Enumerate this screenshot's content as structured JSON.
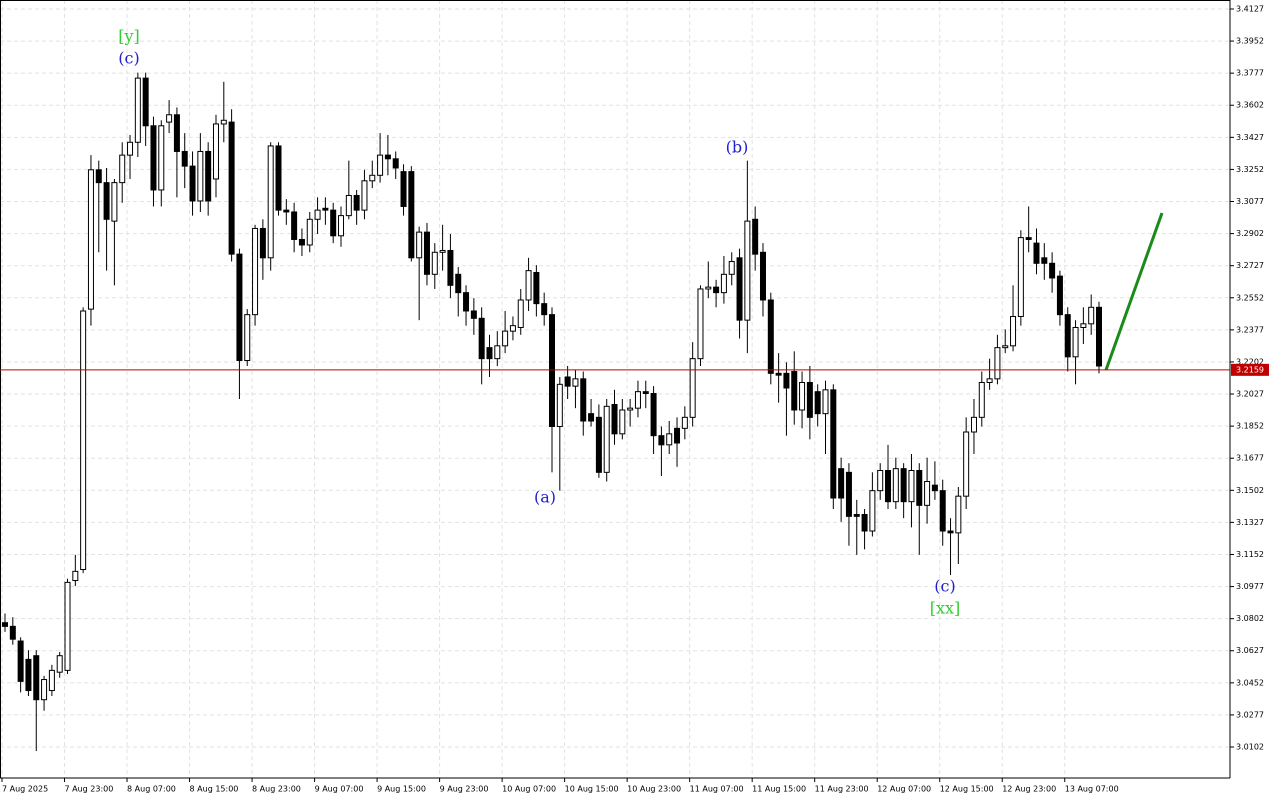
{
  "chart_data": {
    "type": "candlestick",
    "categories": [
      "7 Aug 2025",
      null,
      null,
      null,
      null,
      null,
      null,
      null,
      "7 Aug 23:00",
      null,
      null,
      null,
      null,
      null,
      null,
      null,
      "8 Aug 07:00",
      null,
      null,
      null,
      null,
      null,
      null,
      null,
      "8 Aug 15:00",
      null,
      null,
      null,
      null,
      null,
      null,
      null,
      "8 Aug 23:00",
      null,
      null,
      null,
      null,
      null,
      null,
      null,
      "9 Aug 07:00",
      null,
      null,
      null,
      null,
      null,
      null,
      null,
      "9 Aug 15:00",
      null,
      null,
      null,
      null,
      null,
      null,
      null,
      "9 Aug 23:00",
      null,
      null,
      null,
      null,
      null,
      null,
      null,
      "10 Aug 07:00",
      null,
      null,
      null,
      null,
      null,
      null,
      null,
      "10 Aug 15:00",
      null,
      null,
      null,
      null,
      null,
      null,
      null,
      "10 Aug 23:00",
      null,
      null,
      null,
      null,
      null,
      null,
      null,
      "11 Aug 07:00",
      null,
      null,
      null,
      null,
      null,
      null,
      null,
      "11 Aug 15:00",
      null,
      null,
      null,
      null,
      null,
      null,
      null,
      "11 Aug 23:00",
      null,
      null,
      null,
      null,
      null,
      null,
      null,
      "12 Aug 07:00",
      null,
      null,
      null,
      null,
      null,
      null,
      null,
      "12 Aug 15:00",
      null,
      null,
      null,
      null,
      null,
      null,
      null,
      "12 Aug 23:00",
      null,
      null,
      null,
      null,
      null,
      null,
      null,
      "13 Aug 07:00",
      null,
      null,
      null,
      null
    ],
    "ohlc": [
      [
        3.078,
        3.083,
        3.073,
        3.076
      ],
      [
        3.076,
        3.081,
        3.066,
        3.069
      ],
      [
        3.068,
        3.07,
        3.04,
        3.046
      ],
      [
        3.058,
        3.063,
        3.038,
        3.041
      ],
      [
        3.06,
        3.063,
        3.008,
        3.036
      ],
      [
        3.036,
        3.049,
        3.03,
        3.047
      ],
      [
        3.041,
        3.055,
        3.038,
        3.052
      ],
      [
        3.051,
        3.062,
        3.048,
        3.06
      ],
      [
        3.052,
        3.102,
        3.05,
        3.1
      ],
      [
        3.101,
        3.115,
        3.098,
        3.106
      ],
      [
        3.107,
        3.25,
        3.105,
        3.248
      ],
      [
        3.249,
        3.333,
        3.24,
        3.325
      ],
      [
        3.325,
        3.33,
        3.28,
        3.318
      ],
      [
        3.318,
        3.326,
        3.27,
        3.298
      ],
      [
        3.297,
        3.32,
        3.262,
        3.318
      ],
      [
        3.318,
        3.34,
        3.307,
        3.333
      ],
      [
        3.333,
        3.344,
        3.32,
        3.34
      ],
      [
        3.34,
        3.378,
        3.332,
        3.375
      ],
      [
        3.375,
        3.378,
        3.338,
        3.349
      ],
      [
        3.349,
        3.354,
        3.305,
        3.314
      ],
      [
        3.314,
        3.352,
        3.305,
        3.349
      ],
      [
        3.351,
        3.363,
        3.345,
        3.355
      ],
      [
        3.355,
        3.359,
        3.31,
        3.335
      ],
      [
        3.335,
        3.345,
        3.315,
        3.327
      ],
      [
        3.327,
        3.335,
        3.3,
        3.308
      ],
      [
        3.308,
        3.345,
        3.302,
        3.335
      ],
      [
        3.335,
        3.34,
        3.3,
        3.308
      ],
      [
        3.32,
        3.355,
        3.31,
        3.35
      ],
      [
        3.35,
        3.373,
        3.34,
        3.352
      ],
      [
        3.351,
        3.358,
        3.275,
        3.279
      ],
      [
        3.279,
        3.282,
        3.2,
        3.221
      ],
      [
        3.221,
        3.249,
        3.218,
        3.246
      ],
      [
        3.246,
        3.295,
        3.24,
        3.293
      ],
      [
        3.293,
        3.298,
        3.265,
        3.277
      ],
      [
        3.277,
        3.34,
        3.27,
        3.338
      ],
      [
        3.338,
        3.34,
        3.3,
        3.303
      ],
      [
        3.303,
        3.309,
        3.295,
        3.302
      ],
      [
        3.302,
        3.307,
        3.28,
        3.287
      ],
      [
        3.287,
        3.293,
        3.278,
        3.284
      ],
      [
        3.284,
        3.302,
        3.28,
        3.298
      ],
      [
        3.298,
        3.31,
        3.29,
        3.303
      ],
      [
        3.304,
        3.31,
        3.295,
        3.303
      ],
      [
        3.303,
        3.307,
        3.285,
        3.289
      ],
      [
        3.289,
        3.305,
        3.283,
        3.3
      ],
      [
        3.3,
        3.33,
        3.298,
        3.311
      ],
      [
        3.311,
        3.314,
        3.295,
        3.303
      ],
      [
        3.303,
        3.325,
        3.298,
        3.319
      ],
      [
        3.319,
        3.33,
        3.315,
        3.322
      ],
      [
        3.322,
        3.345,
        3.318,
        3.333
      ],
      [
        3.333,
        3.344,
        3.322,
        3.331
      ],
      [
        3.331,
        3.335,
        3.32,
        3.326
      ],
      [
        3.324,
        3.328,
        3.3,
        3.305
      ],
      [
        3.324,
        3.327,
        3.275,
        3.277
      ],
      [
        3.277,
        3.294,
        3.243,
        3.291
      ],
      [
        3.291,
        3.296,
        3.262,
        3.268
      ],
      [
        3.268,
        3.285,
        3.26,
        3.28
      ],
      [
        3.28,
        3.295,
        3.27,
        3.281
      ],
      [
        3.281,
        3.29,
        3.255,
        3.262
      ],
      [
        3.268,
        3.272,
        3.245,
        3.258
      ],
      [
        3.258,
        3.262,
        3.24,
        3.248
      ],
      [
        3.248,
        3.255,
        3.235,
        3.244
      ],
      [
        3.244,
        3.25,
        3.208,
        3.222
      ],
      [
        3.228,
        3.235,
        3.212,
        3.222
      ],
      [
        3.222,
        3.237,
        3.218,
        3.229
      ],
      [
        3.229,
        3.248,
        3.225,
        3.237
      ],
      [
        3.237,
        3.245,
        3.232,
        3.24
      ],
      [
        3.239,
        3.26,
        3.235,
        3.254
      ],
      [
        3.254,
        3.277,
        3.248,
        3.27
      ],
      [
        3.269,
        3.273,
        3.245,
        3.252
      ],
      [
        3.252,
        3.258,
        3.24,
        3.246
      ],
      [
        3.246,
        3.25,
        3.16,
        3.185
      ],
      [
        3.185,
        3.212,
        3.15,
        3.208
      ],
      [
        3.212,
        3.218,
        3.2,
        3.207
      ],
      [
        3.207,
        3.216,
        3.195,
        3.211
      ],
      [
        3.211,
        3.215,
        3.18,
        3.188
      ],
      [
        3.192,
        3.2,
        3.185,
        3.188
      ],
      [
        3.19,
        3.197,
        3.157,
        3.16
      ],
      [
        3.16,
        3.2,
        3.155,
        3.196
      ],
      [
        3.197,
        3.205,
        3.175,
        3.181
      ],
      [
        3.181,
        3.2,
        3.178,
        3.194
      ],
      [
        3.194,
        3.2,
        3.185,
        3.195
      ],
      [
        3.195,
        3.21,
        3.19,
        3.204
      ],
      [
        3.204,
        3.21,
        3.195,
        3.203
      ],
      [
        3.203,
        3.207,
        3.17,
        3.18
      ],
      [
        3.18,
        3.185,
        3.158,
        3.175
      ],
      [
        3.175,
        3.188,
        3.17,
        3.181
      ],
      [
        3.184,
        3.19,
        3.163,
        3.176
      ],
      [
        3.184,
        3.196,
        3.178,
        3.19
      ],
      [
        3.19,
        3.231,
        3.185,
        3.222
      ],
      [
        3.222,
        3.262,
        3.218,
        3.26
      ],
      [
        3.26,
        3.275,
        3.255,
        3.261
      ],
      [
        3.261,
        3.265,
        3.25,
        3.258
      ],
      [
        3.258,
        3.278,
        3.252,
        3.268
      ],
      [
        3.268,
        3.28,
        3.262,
        3.275
      ],
      [
        3.277,
        3.282,
        3.233,
        3.243
      ],
      [
        3.243,
        3.33,
        3.225,
        3.297
      ],
      [
        3.298,
        3.305,
        3.27,
        3.279
      ],
      [
        3.28,
        3.285,
        3.245,
        3.254
      ],
      [
        3.254,
        3.258,
        3.208,
        3.214
      ],
      [
        3.214,
        3.225,
        3.198,
        3.213
      ],
      [
        3.214,
        3.22,
        3.18,
        3.206
      ],
      [
        3.215,
        3.226,
        3.186,
        3.194
      ],
      [
        3.194,
        3.215,
        3.184,
        3.209
      ],
      [
        3.209,
        3.218,
        3.178,
        3.19
      ],
      [
        3.204,
        3.208,
        3.185,
        3.192
      ],
      [
        3.192,
        3.21,
        3.17,
        3.205
      ],
      [
        3.205,
        3.208,
        3.14,
        3.146
      ],
      [
        3.162,
        3.168,
        3.133,
        3.146
      ],
      [
        3.16,
        3.165,
        3.12,
        3.136
      ],
      [
        3.137,
        3.145,
        3.115,
        3.136
      ],
      [
        3.137,
        3.14,
        3.118,
        3.128
      ],
      [
        3.128,
        3.16,
        3.125,
        3.15
      ],
      [
        3.15,
        3.165,
        3.145,
        3.161
      ],
      [
        3.161,
        3.175,
        3.14,
        3.144
      ],
      [
        3.144,
        3.168,
        3.14,
        3.162
      ],
      [
        3.162,
        3.165,
        3.135,
        3.144
      ],
      [
        3.144,
        3.17,
        3.13,
        3.161
      ],
      [
        3.161,
        3.165,
        3.115,
        3.142
      ],
      [
        3.142,
        3.168,
        3.132,
        3.155
      ],
      [
        3.153,
        3.166,
        3.145,
        3.15
      ],
      [
        3.15,
        3.156,
        3.12,
        3.128
      ],
      [
        3.128,
        3.135,
        3.104,
        3.127
      ],
      [
        3.127,
        3.152,
        3.11,
        3.147
      ],
      [
        3.147,
        3.19,
        3.14,
        3.182
      ],
      [
        3.182,
        3.2,
        3.17,
        3.19
      ],
      [
        3.19,
        3.215,
        3.185,
        3.209
      ],
      [
        3.209,
        3.222,
        3.205,
        3.211
      ],
      [
        3.211,
        3.235,
        3.208,
        3.228
      ],
      [
        3.228,
        3.238,
        3.225,
        3.229
      ],
      [
        3.229,
        3.262,
        3.226,
        3.245
      ],
      [
        3.245,
        3.292,
        3.24,
        3.288
      ],
      [
        3.288,
        3.305,
        3.28,
        3.287
      ],
      [
        3.285,
        3.293,
        3.268,
        3.274
      ],
      [
        3.277,
        3.285,
        3.265,
        3.274
      ],
      [
        3.274,
        3.28,
        3.258,
        3.266
      ],
      [
        3.267,
        3.27,
        3.24,
        3.246
      ],
      [
        3.246,
        3.25,
        3.215,
        3.223
      ],
      [
        3.223,
        3.243,
        3.208,
        3.239
      ],
      [
        3.239,
        3.25,
        3.23,
        3.241
      ],
      [
        3.241,
        3.257,
        3.235,
        3.25
      ],
      [
        3.25,
        3.253,
        3.214,
        3.218
      ]
    ],
    "up_color": "#ffffff",
    "down_color": "#000000",
    "ylim": [
      2.9933,
      3.4176
    ],
    "yticks": [
      3.0102,
      3.0277,
      3.0452,
      3.0627,
      3.0802,
      3.0977,
      3.1152,
      3.1327,
      3.1502,
      3.1677,
      3.1852,
      3.2027,
      3.2202,
      3.2377,
      3.2552,
      3.2727,
      3.2902,
      3.3077,
      3.3252,
      3.3427,
      3.3602,
      3.3777,
      3.3952,
      3.4127
    ],
    "grid": true,
    "current_price": 3.2159,
    "price_line_color": "#c00000",
    "annotations": [
      {
        "text": "[y]",
        "color": "#32cd32"
      },
      {
        "text": "(c)",
        "color": "#2020d0"
      },
      {
        "text": "(b)",
        "color": "#2020d0"
      },
      {
        "text": "(a)",
        "color": "#2020d0"
      },
      {
        "text": "(c)",
        "color": "#2020d0"
      },
      {
        "text": "[xx]",
        "color": "#32cd32"
      }
    ]
  }
}
